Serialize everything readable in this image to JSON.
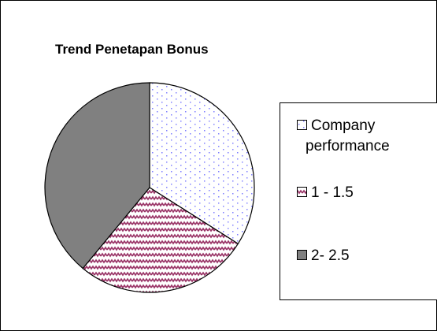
{
  "chart_data": {
    "type": "pie",
    "title": "Trend Penetapan Bonus",
    "categories": [
      "Company performance",
      "1 - 1.5",
      "2- 2.5"
    ],
    "values": [
      34,
      27,
      39
    ],
    "colors": [
      "#8080ff",
      "#993366",
      "#808080"
    ],
    "patterns": [
      "dots",
      "waves",
      "solid"
    ]
  }
}
